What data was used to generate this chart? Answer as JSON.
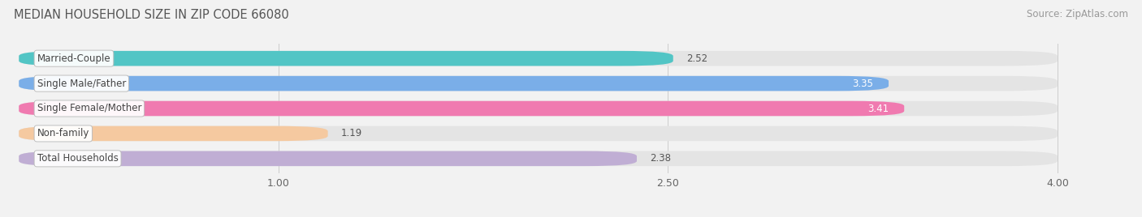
{
  "title": "MEDIAN HOUSEHOLD SIZE IN ZIP CODE 66080",
  "source": "Source: ZipAtlas.com",
  "categories": [
    "Married-Couple",
    "Single Male/Father",
    "Single Female/Mother",
    "Non-family",
    "Total Households"
  ],
  "values": [
    2.52,
    3.35,
    3.41,
    1.19,
    2.38
  ],
  "bar_colors": [
    "#52c5c5",
    "#7aaee8",
    "#f07ab0",
    "#f5c9a0",
    "#c0aed4"
  ],
  "value_inside": [
    false,
    true,
    true,
    false,
    false
  ],
  "xlim_min": 0.0,
  "xlim_max": 4.0,
  "xticks": [
    1.0,
    2.5,
    4.0
  ],
  "xtick_labels": [
    "1.00",
    "2.50",
    "4.00"
  ],
  "background_color": "#f2f2f2",
  "bar_bg_color": "#e4e4e4",
  "title_fontsize": 10.5,
  "source_fontsize": 8.5,
  "label_fontsize": 8.5,
  "value_fontsize": 8.5,
  "tick_fontsize": 9
}
